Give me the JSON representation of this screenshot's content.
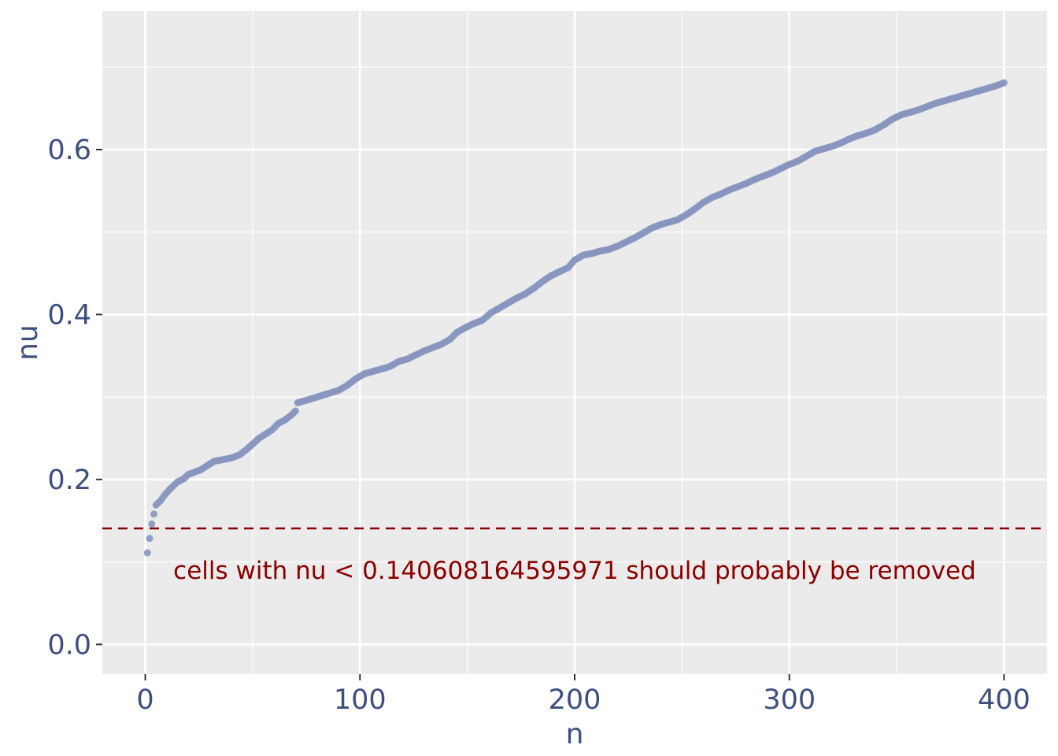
{
  "chart_data": {
    "type": "scatter",
    "xlabel": "n",
    "ylabel": "nu",
    "xlim": [
      -20,
      420
    ],
    "ylim": [
      -0.036,
      0.768
    ],
    "x_ticks": [
      0,
      100,
      200,
      300,
      400
    ],
    "x_tick_labels": [
      "0",
      "100",
      "200",
      "300",
      "400"
    ],
    "y_ticks": [
      0.0,
      0.2,
      0.4,
      0.6
    ],
    "y_tick_labels": [
      "0.0",
      "0.2",
      "0.4",
      "0.6"
    ],
    "grid": true,
    "legend": "none",
    "point_color": "#8896bf",
    "panel_background": "#ebebeb",
    "points": [
      [
        1,
        0.111
      ],
      [
        3,
        0.146
      ],
      [
        4,
        0.158
      ],
      [
        5,
        0.169
      ],
      [
        7,
        0.174
      ],
      [
        9,
        0.181
      ],
      [
        11,
        0.187
      ],
      [
        13,
        0.192
      ],
      [
        15,
        0.197
      ],
      [
        18,
        0.201
      ],
      [
        20,
        0.206
      ],
      [
        23,
        0.209
      ],
      [
        26,
        0.212
      ],
      [
        29,
        0.217
      ],
      [
        32,
        0.222
      ],
      [
        36,
        0.224
      ],
      [
        40,
        0.226
      ],
      [
        44,
        0.23
      ],
      [
        47,
        0.236
      ],
      [
        50,
        0.243
      ],
      [
        53,
        0.25
      ],
      [
        56,
        0.255
      ],
      [
        59,
        0.26
      ],
      [
        62,
        0.268
      ],
      [
        65,
        0.272
      ],
      [
        68,
        0.278
      ],
      [
        70,
        0.283
      ],
      [
        71,
        0.293
      ],
      [
        75,
        0.296
      ],
      [
        80,
        0.3
      ],
      [
        85,
        0.304
      ],
      [
        90,
        0.308
      ],
      [
        94,
        0.314
      ],
      [
        98,
        0.322
      ],
      [
        102,
        0.328
      ],
      [
        106,
        0.331
      ],
      [
        110,
        0.334
      ],
      [
        114,
        0.337
      ],
      [
        118,
        0.343
      ],
      [
        122,
        0.346
      ],
      [
        126,
        0.351
      ],
      [
        130,
        0.356
      ],
      [
        134,
        0.36
      ],
      [
        138,
        0.364
      ],
      [
        142,
        0.37
      ],
      [
        145,
        0.378
      ],
      [
        149,
        0.384
      ],
      [
        153,
        0.389
      ],
      [
        157,
        0.393
      ],
      [
        161,
        0.402
      ],
      [
        165,
        0.408
      ],
      [
        169,
        0.414
      ],
      [
        173,
        0.42
      ],
      [
        177,
        0.425
      ],
      [
        181,
        0.432
      ],
      [
        185,
        0.44
      ],
      [
        189,
        0.447
      ],
      [
        193,
        0.452
      ],
      [
        197,
        0.457
      ],
      [
        200,
        0.466
      ],
      [
        204,
        0.472
      ],
      [
        208,
        0.474
      ],
      [
        212,
        0.477
      ],
      [
        216,
        0.479
      ],
      [
        220,
        0.483
      ],
      [
        224,
        0.488
      ],
      [
        228,
        0.493
      ],
      [
        232,
        0.499
      ],
      [
        236,
        0.505
      ],
      [
        240,
        0.509
      ],
      [
        244,
        0.512
      ],
      [
        248,
        0.515
      ],
      [
        252,
        0.521
      ],
      [
        256,
        0.528
      ],
      [
        260,
        0.536
      ],
      [
        264,
        0.542
      ],
      [
        268,
        0.546
      ],
      [
        272,
        0.551
      ],
      [
        276,
        0.555
      ],
      [
        280,
        0.559
      ],
      [
        284,
        0.564
      ],
      [
        288,
        0.568
      ],
      [
        292,
        0.572
      ],
      [
        296,
        0.577
      ],
      [
        300,
        0.582
      ],
      [
        304,
        0.586
      ],
      [
        308,
        0.592
      ],
      [
        312,
        0.598
      ],
      [
        316,
        0.601
      ],
      [
        320,
        0.604
      ],
      [
        324,
        0.608
      ],
      [
        328,
        0.613
      ],
      [
        332,
        0.617
      ],
      [
        336,
        0.62
      ],
      [
        340,
        0.624
      ],
      [
        344,
        0.63
      ],
      [
        348,
        0.637
      ],
      [
        352,
        0.642
      ],
      [
        356,
        0.645
      ],
      [
        360,
        0.648
      ],
      [
        364,
        0.652
      ],
      [
        368,
        0.656
      ],
      [
        372,
        0.659
      ],
      [
        376,
        0.662
      ],
      [
        380,
        0.665
      ],
      [
        384,
        0.668
      ],
      [
        388,
        0.671
      ],
      [
        392,
        0.674
      ],
      [
        396,
        0.677
      ],
      [
        400,
        0.681
      ]
    ],
    "threshold": {
      "value": 0.140608164595971,
      "line_style": "dashed",
      "color": "#8b0000",
      "label": "cells with nu < 0.140608164595971 should probably be removed",
      "label_x": 200,
      "label_y": 0.09
    }
  }
}
